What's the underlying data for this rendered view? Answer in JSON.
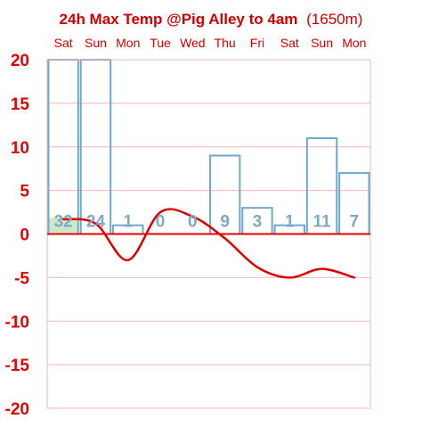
{
  "chart_data": {
    "type": "bar",
    "title": "24h Max Temp @Pig Alley to 4am",
    "title_suffix": "(1650m)",
    "categories": [
      "Sat",
      "Sun",
      "Mon",
      "Tue",
      "Wed",
      "Thu",
      "Fri",
      "Sat",
      "Sun",
      "Mon"
    ],
    "bar_series": {
      "values": [
        32,
        24,
        1,
        0,
        0,
        9,
        3,
        1,
        11,
        7
      ],
      "labels": [
        "32",
        "24",
        "1",
        "0",
        "0",
        "9",
        "3",
        "1",
        "11",
        "7"
      ]
    },
    "line_series": {
      "values": [
        1.7,
        1.2,
        -3.0,
        2.5,
        2.0,
        -0.5,
        -3.8,
        -5.0,
        -4.0,
        -5.0
      ]
    },
    "ylim": [
      -20,
      20
    ],
    "yticks": [
      20,
      15,
      10,
      5,
      0,
      -5,
      -10,
      -15,
      -20
    ],
    "grid": true,
    "colors": {
      "title": "#d00000",
      "axis_text": "#e60000",
      "category_text": "#d00000",
      "grid": "#f2b8b8",
      "bar_stroke": "#6fa8d0",
      "bar_label": "#7fa8c8",
      "line": "#dd0000",
      "highlight_fill": "#cfe8c8"
    }
  }
}
